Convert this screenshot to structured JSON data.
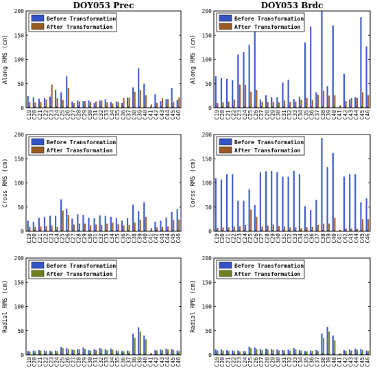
{
  "colors": {
    "before": "#3553c8",
    "after_brown": "#9a5a24",
    "after_olive": "#6f7f23",
    "axis": "#000000"
  },
  "chart_data": [
    {
      "type": "bar",
      "title": "DOY053 Prec",
      "xlabel": "",
      "ylabel": "Along RMS (cm)",
      "ylim": [
        0,
        200
      ],
      "yticks": [
        0,
        50,
        100,
        150,
        200
      ],
      "categories": [
        "C19",
        "C20",
        "C21",
        "C22",
        "C23",
        "C24",
        "C25",
        "C26",
        "C27",
        "C28",
        "C29",
        "C30",
        "C31",
        "C32",
        "C33",
        "C34",
        "C35",
        "C36",
        "C37",
        "C38",
        "C39",
        "C40",
        "C41",
        "C42",
        "C43",
        "C44",
        "C45",
        "C46"
      ],
      "series": [
        {
          "name": "Before Transformation",
          "color": "#3553c8",
          "values": [
            24,
            22,
            19,
            20,
            23,
            37,
            32,
            65,
            13,
            15,
            14,
            15,
            10,
            15,
            18,
            12,
            13,
            10,
            21,
            42,
            82,
            50,
            0,
            28,
            14,
            18,
            41,
            16
          ]
        },
        {
          "name": "After Transformation",
          "color": "#9a5a24",
          "values": [
            12,
            11,
            12,
            17,
            48,
            20,
            16,
            41,
            10,
            13,
            14,
            12,
            13,
            15,
            11,
            9,
            12,
            20,
            21,
            33,
            37,
            26,
            7,
            10,
            20,
            18,
            12,
            21
          ]
        }
      ],
      "legend": "top-left",
      "grid": false
    },
    {
      "type": "bar",
      "title": "DOY053 Brdc",
      "xlabel": "",
      "ylabel": "Along RMS (cm)",
      "ylim": [
        0,
        200
      ],
      "yticks": [
        0,
        50,
        100,
        150,
        200
      ],
      "categories": [
        "C19",
        "C20",
        "C21",
        "C22",
        "C23",
        "C24",
        "C25",
        "C26",
        "C27",
        "C28",
        "C29",
        "C30",
        "C31",
        "C32",
        "C33",
        "C34",
        "C35",
        "C36",
        "C37",
        "C38",
        "C39",
        "C40",
        "C41",
        "C42",
        "C43",
        "C44",
        "C45",
        "C46"
      ],
      "series": [
        {
          "name": "Before Transformation",
          "color": "#3553c8",
          "values": [
            65,
            61,
            60,
            57,
            110,
            115,
            130,
            160,
            17,
            26,
            22,
            22,
            52,
            58,
            18,
            23,
            135,
            168,
            32,
            200,
            45,
            170,
            0,
            70,
            17,
            22,
            187,
            127
          ]
        },
        {
          "name": "After Transformation",
          "color": "#9a5a24",
          "values": [
            10,
            11,
            13,
            17,
            48,
            47,
            33,
            37,
            12,
            12,
            12,
            11,
            15,
            12,
            13,
            16,
            20,
            16,
            27,
            35,
            25,
            26,
            5,
            14,
            20,
            20,
            32,
            26
          ]
        }
      ],
      "legend": "top-left",
      "grid": false
    },
    {
      "type": "bar",
      "title": "",
      "xlabel": "",
      "ylabel": "Cross RMS (cm)",
      "ylim": [
        0,
        200
      ],
      "yticks": [
        0,
        50,
        100,
        150,
        200
      ],
      "categories": [
        "C19",
        "C20",
        "C21",
        "C22",
        "C23",
        "C24",
        "C25",
        "C26",
        "C27",
        "C28",
        "C29",
        "C30",
        "C31",
        "C32",
        "C33",
        "C34",
        "C35",
        "C36",
        "C37",
        "C38",
        "C39",
        "C40",
        "C41",
        "C42",
        "C43",
        "C44",
        "C45",
        "C46"
      ],
      "series": [
        {
          "name": "Before Transformation",
          "color": "#3553c8",
          "values": [
            22,
            20,
            28,
            30,
            32,
            32,
            66,
            47,
            26,
            35,
            34,
            28,
            27,
            33,
            32,
            30,
            27,
            22,
            27,
            55,
            42,
            60,
            0,
            20,
            22,
            28,
            40,
            46
          ]
        },
        {
          "name": "After Transformation",
          "color": "#9a5a24",
          "values": [
            9,
            9,
            10,
            11,
            12,
            9,
            43,
            34,
            14,
            16,
            16,
            12,
            14,
            13,
            16,
            18,
            15,
            12,
            13,
            18,
            24,
            30,
            7,
            8,
            9,
            10,
            24,
            24
          ]
        }
      ],
      "legend": "top-left",
      "grid": false
    },
    {
      "type": "bar",
      "title": "",
      "xlabel": "",
      "ylabel": "Corss RMS (cm)",
      "ylim": [
        0,
        200
      ],
      "yticks": [
        0,
        50,
        100,
        150,
        200
      ],
      "categories": [
        "C19",
        "C20",
        "C21",
        "C22",
        "C23",
        "C24",
        "C25",
        "C26",
        "C27",
        "C28",
        "C29",
        "C30",
        "C31",
        "C32",
        "C33",
        "C34",
        "C35",
        "C36",
        "C37",
        "C38",
        "C39",
        "C40",
        "C41",
        "C42",
        "C43",
        "C44",
        "C45",
        "C46"
      ],
      "series": [
        {
          "name": "Before Transformation",
          "color": "#3553c8",
          "values": [
            110,
            107,
            118,
            118,
            63,
            63,
            87,
            54,
            122,
            124,
            125,
            122,
            113,
            113,
            125,
            118,
            52,
            44,
            65,
            193,
            133,
            162,
            0,
            113,
            118,
            118,
            60,
            68
          ]
        },
        {
          "name": "After Transformation",
          "color": "#9a5a24",
          "values": [
            7,
            8,
            8,
            10,
            10,
            13,
            45,
            30,
            10,
            12,
            14,
            11,
            10,
            8,
            8,
            7,
            8,
            9,
            13,
            16,
            16,
            28,
            3,
            6,
            6,
            5,
            25,
            25
          ]
        }
      ],
      "legend": "top-left",
      "grid": false
    },
    {
      "type": "bar",
      "title": "",
      "xlabel": "",
      "ylabel": "Radial RMS (cm)",
      "ylim": [
        0,
        200
      ],
      "yticks": [
        0,
        50,
        100,
        150,
        200
      ],
      "categories": [
        "C19",
        "C20",
        "C21",
        "C22",
        "C23",
        "C24",
        "C25",
        "C26",
        "C27",
        "C28",
        "C29",
        "C30",
        "C31",
        "C32",
        "C33",
        "C34",
        "C35",
        "C36",
        "C37",
        "C38",
        "C39",
        "C40",
        "C41",
        "C42",
        "C43",
        "C44",
        "C45",
        "C46"
      ],
      "series": [
        {
          "name": "Before Transformation",
          "color": "#3553c8",
          "values": [
            8,
            9,
            10,
            9,
            8,
            9,
            16,
            14,
            11,
            12,
            15,
            10,
            12,
            14,
            11,
            13,
            9,
            8,
            9,
            44,
            57,
            40,
            0,
            10,
            11,
            13,
            12,
            9
          ]
        },
        {
          "name": "After Transformation",
          "color": "#6f7f23",
          "values": [
            7,
            8,
            9,
            8,
            7,
            8,
            14,
            12,
            10,
            11,
            12,
            9,
            10,
            12,
            10,
            11,
            8,
            7,
            8,
            35,
            48,
            32,
            4,
            9,
            10,
            11,
            10,
            8
          ]
        }
      ],
      "legend": "top-left",
      "grid": false
    },
    {
      "type": "bar",
      "title": "",
      "xlabel": "",
      "ylabel": "Radial RMS (cm)",
      "ylim": [
        0,
        200
      ],
      "yticks": [
        0,
        50,
        100,
        150,
        200
      ],
      "categories": [
        "C19",
        "C20",
        "C21",
        "C22",
        "C23",
        "C24",
        "C25",
        "C26",
        "C27",
        "C28",
        "C29",
        "C30",
        "C31",
        "C32",
        "C33",
        "C34",
        "C35",
        "C36",
        "C37",
        "C38",
        "C39",
        "C40",
        "C41",
        "C42",
        "C43",
        "C44",
        "C45",
        "C46"
      ],
      "series": [
        {
          "name": "Before Transformation",
          "color": "#3553c8",
          "values": [
            11,
            11,
            10,
            9,
            9,
            8,
            17,
            15,
            12,
            13,
            12,
            11,
            10,
            11,
            14,
            10,
            8,
            9,
            10,
            44,
            58,
            40,
            0,
            10,
            11,
            13,
            12,
            9
          ]
        },
        {
          "name": "After Transformation",
          "color": "#6f7f23",
          "values": [
            9,
            9,
            8,
            8,
            7,
            7,
            14,
            12,
            10,
            11,
            10,
            9,
            9,
            9,
            11,
            9,
            7,
            8,
            8,
            35,
            48,
            30,
            3,
            8,
            9,
            10,
            10,
            8
          ]
        }
      ],
      "legend": "top-left",
      "grid": false
    }
  ]
}
